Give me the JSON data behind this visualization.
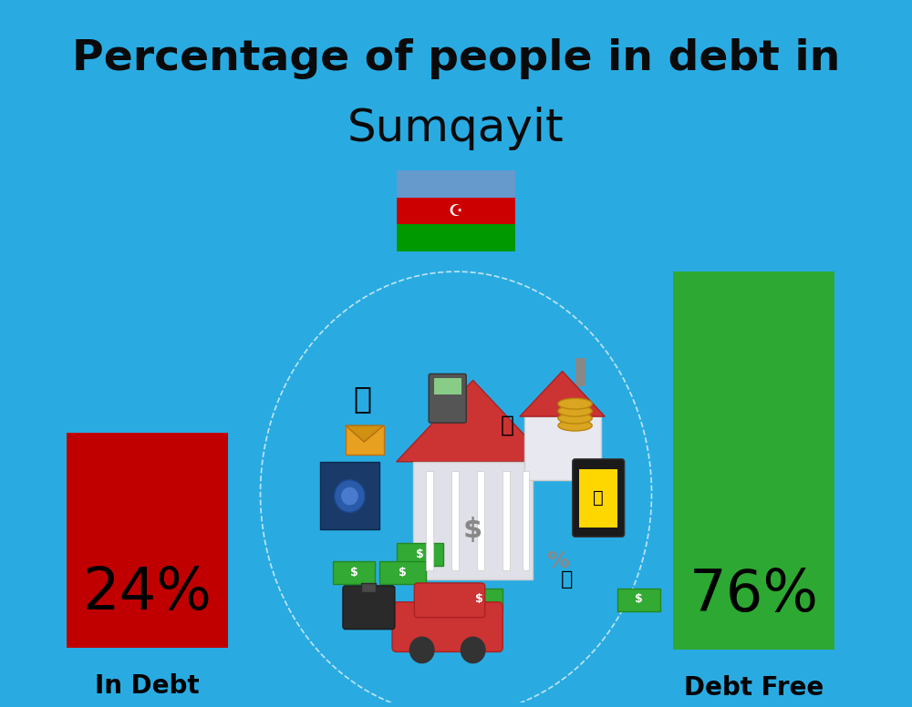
{
  "title_line1": "Percentage of people in debt in",
  "title_line2": "Sumqayit",
  "title1_fontsize": 34,
  "title2_fontsize": 36,
  "background_color": "#29ABE2",
  "bar_left_label": "In Debt",
  "bar_left_color": "#C00000",
  "bar_left_text": "24%",
  "bar_right_label": "Debt Free",
  "bar_right_color": "#2DA832",
  "bar_right_text": "76%",
  "bar_text_color": "#000000",
  "label_fontsize": 20,
  "bar_text_fontsize": 46,
  "label_fontweight": "bold",
  "flag_blue": "#6699CC",
  "flag_red": "#CC0000",
  "flag_green": "#009900",
  "title_color": "#0A0A0A"
}
